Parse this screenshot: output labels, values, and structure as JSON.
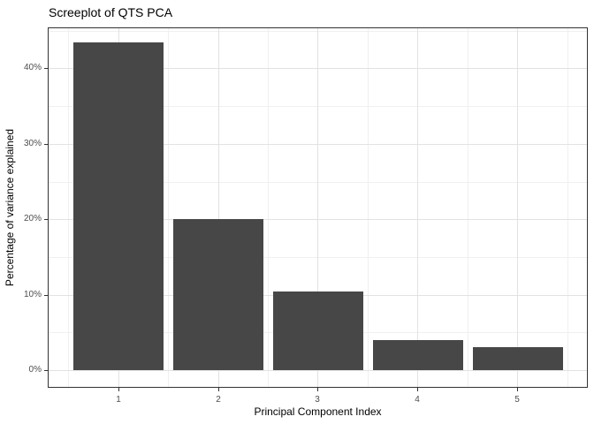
{
  "chart_data": {
    "type": "bar",
    "title": "Screeplot of QTS PCA",
    "xlabel": "Principal Component Index",
    "ylabel": "Percentage of variance explained",
    "categories": [
      1,
      2,
      3,
      4,
      5
    ],
    "values": [
      43.4,
      20.0,
      10.4,
      4.0,
      3.1
    ],
    "bar_width": 0.9,
    "x_range": [
      0.305,
      5.695
    ],
    "y_range": [
      -2.2,
      45.3
    ],
    "y_major_ticks": [
      0,
      10,
      20,
      30,
      40
    ],
    "y_tick_labels": [
      "0%",
      "10%",
      "20%",
      "30%",
      "40%"
    ],
    "y_minor_ticks": [
      5,
      15,
      25,
      35,
      45
    ],
    "x_major_ticks": [
      1,
      2,
      3,
      4,
      5
    ],
    "x_tick_labels": [
      "1",
      "2",
      "3",
      "4",
      "5"
    ],
    "x_minor_ticks": [
      0.5,
      1.5,
      2.5,
      3.5,
      4.5,
      5.5
    ],
    "grid": true,
    "legend": "none",
    "colors": {
      "bar_fill": "#474747",
      "panel_border": "#333333",
      "grid_major": "#e2e2e2",
      "grid_minor": "#f0f0f0",
      "tick_mark": "#333333",
      "tick_label": "#4d4d4d",
      "text": "#000000",
      "background": "#ffffff"
    }
  }
}
